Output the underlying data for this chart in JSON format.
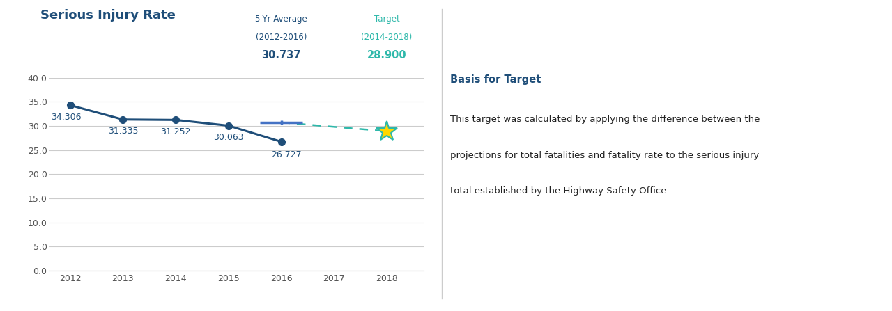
{
  "title": "Serious Injury Rate",
  "title_color": "#1F4E79",
  "title_fontsize": 13,
  "years": [
    2012,
    2013,
    2014,
    2015,
    2016
  ],
  "values": [
    34.306,
    31.335,
    31.252,
    30.063,
    26.727
  ],
  "value_labels": [
    "34.306",
    "31.335",
    "31.252",
    "30.063",
    "26.727"
  ],
  "line_color": "#1F4E79",
  "line_width": 2.2,
  "marker_size": 7,
  "avg_year": 2016,
  "avg_value": 30.737,
  "avg_label": "30.737",
  "avg_annotation_line1": "5-Yr Average",
  "avg_annotation_line2": "(2012-2016)",
  "avg_annotation_color": "#1F4E79",
  "target_year": 2018,
  "target_value": 28.9,
  "target_label": "28.900",
  "target_annotation_line1": "Target",
  "target_annotation_line2": "(2014-2018)",
  "target_annotation_color": "#2EB8AA",
  "dashed_line_color": "#2EB8AA",
  "ylim": [
    0.0,
    40.0
  ],
  "yticks": [
    0.0,
    5.0,
    10.0,
    15.0,
    20.0,
    25.0,
    30.0,
    35.0,
    40.0
  ],
  "xticks": [
    2012,
    2013,
    2014,
    2015,
    2016,
    2017,
    2018
  ],
  "background_color": "#FFFFFF",
  "grid_color": "#CCCCCC",
  "basis_title": "Basis for Target",
  "basis_title_color": "#1F4E79",
  "basis_text_line1": "This target was calculated by applying the difference between the",
  "basis_text_line2": "projections for total fatalities and fatality rate to the serious injury",
  "basis_text_line3": "total established by the Highway Safety Office.",
  "basis_text_color": "#222222",
  "star_face_color": "#FFD700",
  "star_edge_color": "#2EB8AA",
  "crosshair_color": "#4472C4",
  "tick_label_color": "#555555",
  "tick_fontsize": 9,
  "data_label_fontsize": 9,
  "annot_fontsize": 8.5,
  "annot_value_fontsize": 10.5
}
